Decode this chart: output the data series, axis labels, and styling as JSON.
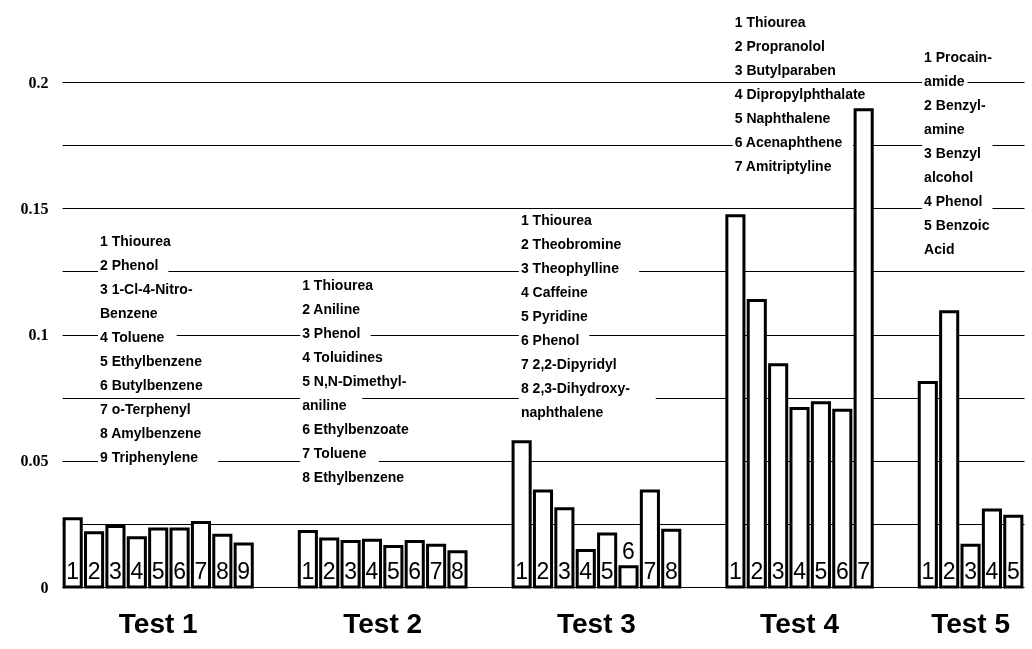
{
  "chart_data": {
    "type": "bar",
    "categories": [
      "1",
      "2",
      "3",
      "4",
      "5",
      "6",
      "7",
      "8",
      "9",
      null,
      null,
      "1",
      "2",
      "3",
      "4",
      "5",
      "6",
      "7",
      "8",
      null,
      null,
      "1",
      "2",
      "3",
      "4",
      "5",
      "6",
      "7",
      "8",
      null,
      null,
      "1",
      "2",
      "3",
      "4",
      "5",
      "6",
      "7",
      null,
      null,
      "1",
      "2",
      "3",
      "4",
      "5"
    ],
    "values": [
      0.027,
      0.0215,
      0.024,
      0.0195,
      0.023,
      0.023,
      0.0255,
      0.0205,
      0.017,
      null,
      null,
      0.022,
      0.019,
      0.018,
      0.0185,
      0.016,
      0.018,
      0.0165,
      0.014,
      null,
      null,
      0.0575,
      0.038,
      0.031,
      0.0145,
      0.021,
      0.008,
      0.038,
      0.0225,
      null,
      null,
      0.147,
      0.1135,
      0.088,
      0.0707,
      0.073,
      0.07,
      0.189,
      null,
      null,
      0.081,
      0.109,
      0.0165,
      0.0305,
      0.028
    ],
    "color": "#ffffff",
    "ylim": [
      0,
      0.2
    ],
    "yticks": [
      0,
      {
        "value": 0.025,
        "label": null
      },
      0.05,
      {
        "value": 0.075,
        "label": null
      },
      0.1,
      {
        "value": 0.125,
        "label": null
      },
      0.15,
      {
        "value": 0.175,
        "label": null
      },
      0.2
    ],
    "grid": "y",
    "annotations": [
      "1 Thiourea\n2 Phenol\n3 1-Cl-4-Nitro-\nBenzene\n4 Toluene\n5 Ethylbenzene\n6 Butylbenzene\n7 o-Terphenyl\n8 Amylbenzene\n9 Triphenylene",
      "1 Thiourea\n2 Aniline\n3 Phenol\n4 Toluidines\n5 N,N-Dimethyl-\naniline\n6 Ethylbenzoate\n7 Toluene\n8 Ethylbenzene",
      "1 Thiourea\n2 Theobromine\n3 Theophylline\n4 Caffeine\n5 Pyridine\n6 Phenol\n7 2,2-Dipyridyl\n8 2,3-Dihydroxy-\nnaphthalene",
      "1 Thiourea\n2 Propranolol\n3 Butylparaben\n4 Dipropylphthalate\n5 Naphthalene\n6 Acenaphthene\n7 Amitriptyline",
      "1 Procain-\namide\n2 Benzyl-\namine\n3 Benzyl\nalcohol\n4 Phenol\n5 Benzoic\nAcid",
      "Test 1",
      "Test 2",
      "Test 3",
      "Test 4",
      "Test 5"
    ]
  }
}
